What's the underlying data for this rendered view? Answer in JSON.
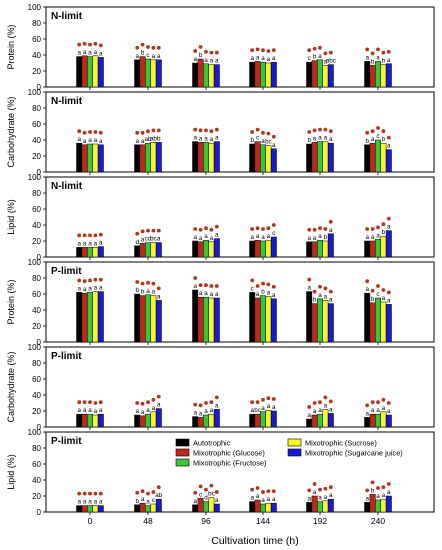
{
  "figure": {
    "xlabel": "Cultivation time (h)",
    "time_ticks": [
      "0",
      "48",
      "96",
      "144",
      "192",
      "240"
    ]
  },
  "colors": {
    "Autotrophic": "#000000",
    "Mixotrophic (Glucose)": "#c0281b",
    "Mixotrophic (Fructose)": "#3dc43a",
    "Mixotrophic (Sucrose)": "#f6f62a",
    "Mixotrophic (Sugarcane juice)": "#1a1ad6",
    "dot": "#b5351c"
  },
  "legend": {
    "entries": [
      "Autotrophic",
      "Mixotrophic (Glucose)",
      "Mixotrophic (Fructose)",
      "Mixotrophic (Sucrose)",
      "Mixotrophic (Sugarcane juice)"
    ]
  },
  "chart_data": [
    {
      "type": "bar",
      "panel_label": "N-limit",
      "ylabel": "Protein (%)",
      "ylim": [
        0,
        100
      ],
      "yticks": [
        0,
        20,
        40,
        60,
        80,
        100
      ],
      "categories": [
        "0",
        "48",
        "96",
        "144",
        "192",
        "240"
      ],
      "series": [
        {
          "name": "Autotrophic",
          "values": [
            38,
            34,
            30,
            31,
            31,
            32
          ],
          "letters": [
            "a",
            "a",
            "a",
            "a",
            "c",
            "a"
          ]
        },
        {
          "name": "Mixotrophic (Glucose)",
          "values": [
            39,
            38,
            35,
            32,
            33,
            27
          ],
          "letters": [
            "a",
            "b",
            "b",
            "a",
            "b",
            "b"
          ]
        },
        {
          "name": "Mixotrophic (Fructose)",
          "values": [
            38,
            35,
            29,
            31,
            34,
            32
          ],
          "letters": [
            "a",
            "c",
            "a",
            "a",
            "a",
            "a"
          ]
        },
        {
          "name": "Mixotrophic (Sucrose)",
          "values": [
            39,
            34,
            28,
            30,
            27,
            28
          ],
          "letters": [
            "a",
            "a",
            "a",
            "a",
            "a",
            "b"
          ]
        },
        {
          "name": "Mixotrophic (Sugarcane juice)",
          "values": [
            37,
            34,
            28,
            31,
            28,
            29
          ],
          "letters": [
            "a",
            "a",
            "a",
            "a",
            "abc",
            "a"
          ]
        }
      ]
    },
    {
      "type": "bar",
      "panel_label": "N-limit",
      "ylabel": "Carbohydrate (%)",
      "ylim": [
        0,
        100
      ],
      "yticks": [
        0,
        20,
        40,
        60,
        80,
        100
      ],
      "categories": [
        "0",
        "48",
        "96",
        "144",
        "192",
        "240"
      ],
      "series": [
        {
          "name": "Autotrophic",
          "values": [
            36,
            34,
            38,
            35,
            35,
            34
          ],
          "letters": [
            "a",
            "a",
            "a",
            "b",
            "b",
            "b"
          ]
        },
        {
          "name": "Mixotrophic (Glucose)",
          "values": [
            34,
            34,
            37,
            38,
            37,
            36
          ],
          "letters": [
            "a",
            "a",
            "a",
            "c",
            "a",
            "a"
          ]
        },
        {
          "name": "Mixotrophic (Fructose)",
          "values": [
            35,
            36,
            37,
            34,
            38,
            40
          ],
          "letters": [
            "a",
            "ab",
            "a",
            "a",
            "a",
            "c"
          ]
        },
        {
          "name": "Mixotrophic (Sucrose)",
          "values": [
            35,
            37,
            36,
            33,
            38,
            36
          ],
          "letters": [
            "a",
            "ab",
            "a",
            "bc",
            "a",
            "b"
          ]
        },
        {
          "name": "Mixotrophic (Sugarcane juice)",
          "values": [
            34,
            37,
            38,
            29,
            36,
            28
          ],
          "letters": [
            "a",
            "b",
            "a",
            "a",
            "a",
            "a"
          ]
        }
      ]
    },
    {
      "type": "bar",
      "panel_label": "N-limit",
      "ylabel": "Lipid (%)",
      "ylim": [
        0,
        100
      ],
      "yticks": [
        0,
        20,
        40,
        60,
        80,
        100
      ],
      "categories": [
        "0",
        "48",
        "96",
        "144",
        "192",
        "240"
      ],
      "series": [
        {
          "name": "Autotrophic",
          "values": [
            12,
            14,
            20,
            20,
            19,
            20
          ],
          "letters": [
            "a",
            "d",
            "a",
            "a",
            "a",
            "a"
          ]
        },
        {
          "name": "Mixotrophic (Glucose)",
          "values": [
            12,
            17,
            19,
            21,
            19,
            20
          ],
          "letters": [
            "a",
            "a",
            "a",
            "a",
            "a",
            "a"
          ]
        },
        {
          "name": "Mixotrophic (Fructose)",
          "values": [
            12,
            18,
            21,
            20,
            21,
            22
          ],
          "letters": [
            "a",
            "cd",
            "a",
            "a",
            "a",
            "a"
          ]
        },
        {
          "name": "Mixotrophic (Sucrose)",
          "values": [
            12,
            18,
            19,
            21,
            20,
            26
          ],
          "letters": [
            "a",
            "bc",
            "a",
            "a",
            "b",
            "b"
          ]
        },
        {
          "name": "Mixotrophic (Sugarcane juice)",
          "values": [
            13,
            18,
            23,
            25,
            29,
            33
          ],
          "letters": [
            "a",
            "a",
            "a",
            "c",
            "a",
            "a"
          ]
        }
      ]
    },
    {
      "type": "bar",
      "panel_label": "P-limit",
      "ylabel": "Protein (%)",
      "ylim": [
        0,
        100
      ],
      "yticks": [
        0,
        20,
        40,
        60,
        80,
        100
      ],
      "categories": [
        "0",
        "48",
        "96",
        "144",
        "192",
        "240"
      ],
      "series": [
        {
          "name": "Autotrophic",
          "values": [
            62,
            60,
            65,
            62,
            63,
            61
          ],
          "letters": [
            "a",
            "b",
            "a",
            "c",
            "a",
            "a"
          ]
        },
        {
          "name": "Mixotrophic (Glucose)",
          "values": [
            61,
            58,
            56,
            55,
            48,
            49
          ],
          "letters": [
            "a",
            "b",
            "a",
            "a",
            "b",
            "b"
          ]
        },
        {
          "name": "Mixotrophic (Fructose)",
          "values": [
            62,
            59,
            56,
            58,
            54,
            55
          ],
          "letters": [
            "a",
            "a",
            "a",
            "b",
            "a",
            "c"
          ]
        },
        {
          "name": "Mixotrophic (Sucrose)",
          "values": [
            63,
            58,
            55,
            57,
            52,
            50
          ],
          "letters": [
            "a",
            "a",
            "a",
            "a",
            "a",
            "a"
          ]
        },
        {
          "name": "Mixotrophic (Sugarcane juice)",
          "values": [
            63,
            52,
            55,
            54,
            48,
            47
          ],
          "letters": [
            "a",
            "a",
            "a",
            "a",
            "a",
            "a"
          ]
        }
      ]
    },
    {
      "type": "bar",
      "panel_label": "P-limit",
      "ylabel": "Carbohydrate (%)",
      "ylim": [
        0,
        100
      ],
      "yticks": [
        0,
        20,
        40,
        60,
        80,
        100
      ],
      "categories": [
        "0",
        "48",
        "96",
        "144",
        "192",
        "240"
      ],
      "series": [
        {
          "name": "Autotrophic",
          "values": [
            16,
            15,
            13,
            16,
            10,
            12
          ],
          "letters": [
            "a",
            "a",
            "a",
            "a",
            "a",
            "a"
          ]
        },
        {
          "name": "Mixotrophic (Glucose)",
          "values": [
            16,
            14,
            12,
            16,
            15,
            16
          ],
          "letters": [
            "a",
            "a",
            "a",
            "bc",
            "a",
            "a"
          ]
        },
        {
          "name": "Mixotrophic (Fructose)",
          "values": [
            16,
            16,
            15,
            19,
            16,
            16
          ],
          "letters": [
            "a",
            "a",
            "a",
            "a",
            "a",
            "a"
          ]
        },
        {
          "name": "Mixotrophic (Sucrose)",
          "values": [
            15,
            19,
            16,
            21,
            22,
            19
          ],
          "letters": [
            "a",
            "a",
            "a",
            "a",
            "a",
            "a"
          ]
        },
        {
          "name": "Mixotrophic (Sugarcane juice)",
          "values": [
            16,
            23,
            22,
            20,
            17,
            15
          ],
          "letters": [
            "a",
            "a",
            "a",
            "a",
            "a",
            "a"
          ]
        }
      ]
    },
    {
      "type": "bar",
      "panel_label": "P-limit",
      "ylabel": "Lipid (%)",
      "ylim": [
        0,
        100
      ],
      "yticks": [
        0,
        20,
        40,
        60,
        80,
        100
      ],
      "categories": [
        "0",
        "48",
        "96",
        "144",
        "192",
        "240"
      ],
      "series": [
        {
          "name": "Autotrophic",
          "values": [
            8,
            9,
            9,
            13,
            12,
            12
          ],
          "letters": [
            "a",
            "b",
            "a",
            "a",
            "a",
            "a"
          ]
        },
        {
          "name": "Mixotrophic (Glucose)",
          "values": [
            8,
            11,
            17,
            15,
            20,
            22
          ],
          "letters": [
            "a",
            "a",
            "c",
            "a",
            "a",
            "b"
          ]
        },
        {
          "name": "Mixotrophic (Fructose)",
          "values": [
            8,
            8,
            13,
            10,
            13,
            15
          ],
          "letters": [
            "a",
            "a",
            "d",
            "a",
            "a",
            "a"
          ]
        },
        {
          "name": "Mixotrophic (Sucrose)",
          "values": [
            8,
            10,
            18,
            11,
            14,
            16
          ],
          "letters": [
            "a",
            "c",
            "bc",
            "a",
            "a",
            "a"
          ]
        },
        {
          "name": "Mixotrophic (Sugarcane juice)",
          "values": [
            8,
            16,
            10,
            11,
            16,
            20
          ],
          "letters": [
            "a",
            "ab",
            "a",
            "a",
            "a",
            "a"
          ]
        }
      ]
    }
  ]
}
